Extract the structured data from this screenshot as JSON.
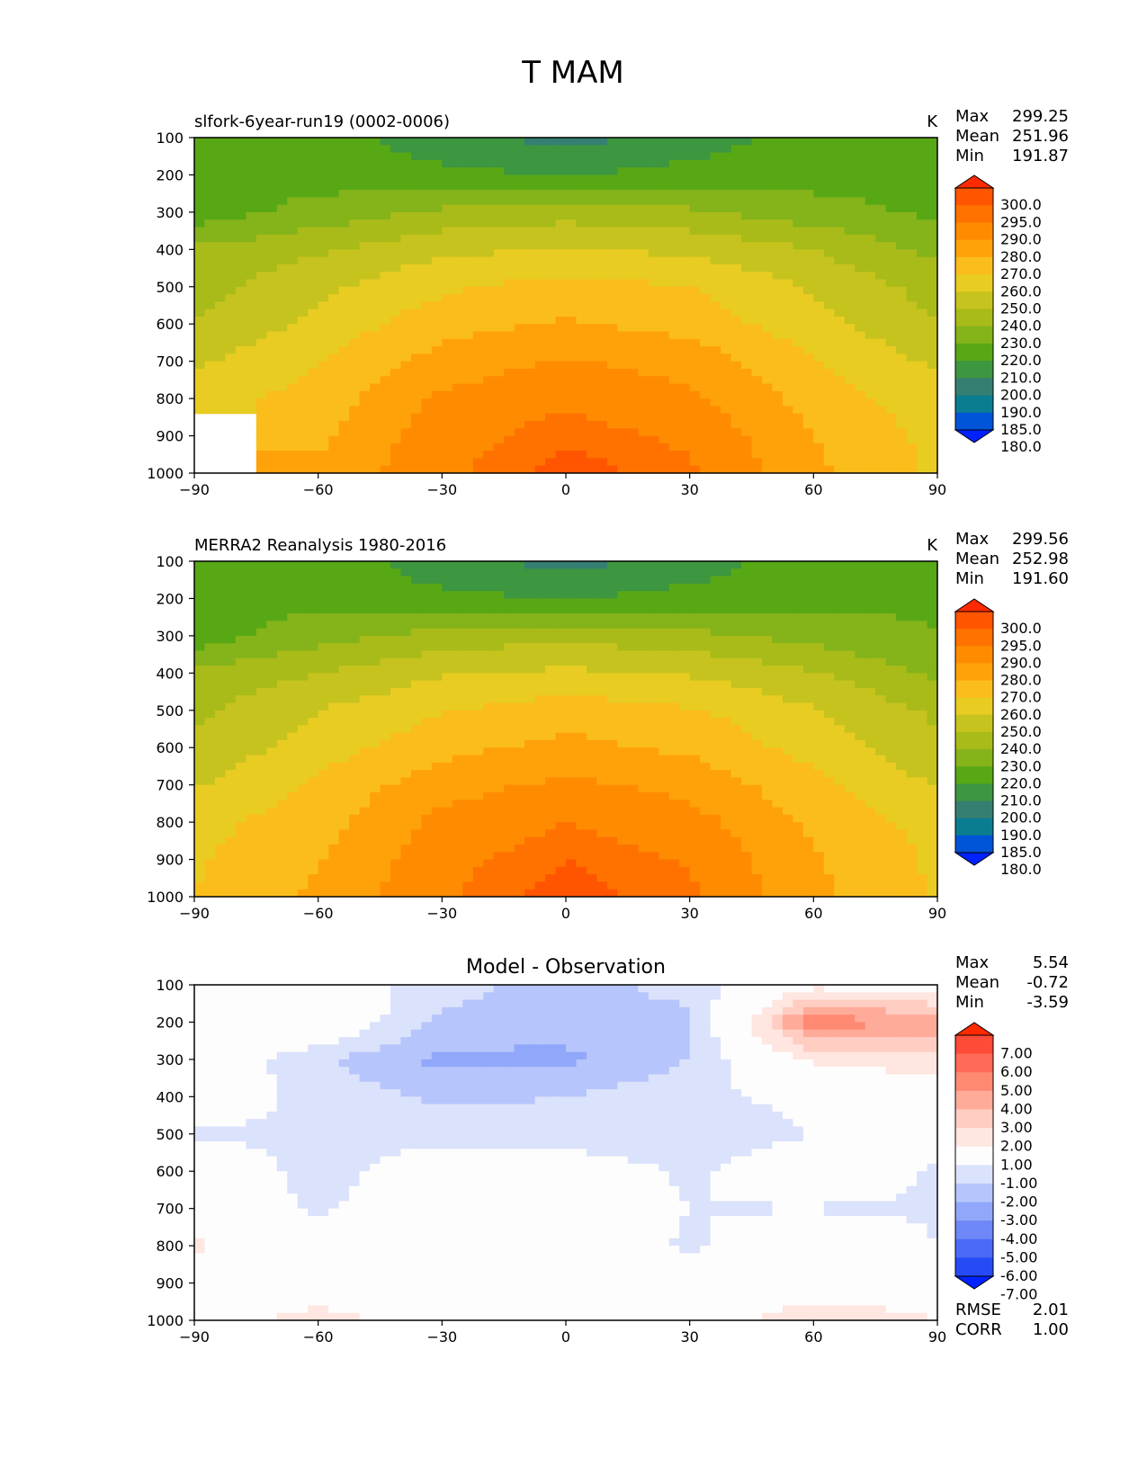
{
  "figure": {
    "title": "T MAM"
  },
  "chart_data": [
    {
      "type": "contour",
      "panel": "test",
      "title_left": "slfork-6year-run19 (0002-0006)",
      "title_center": "",
      "units": "K",
      "xlabel": "",
      "ylabel": "",
      "xlim": [
        -90,
        90
      ],
      "ylim": [
        1000,
        100
      ],
      "y_inverted": true,
      "x_ticks": [
        "−90",
        "−60",
        "−30",
        "0",
        "30",
        "60",
        "90"
      ],
      "y_ticks": [
        "100",
        "200",
        "300",
        "400",
        "500",
        "600",
        "700",
        "800",
        "900",
        "1000"
      ],
      "stats": {
        "max_label": "Max",
        "max": "299.25",
        "mean_label": "Mean",
        "mean": "251.96",
        "min_label": "Min",
        "min": "191.87"
      },
      "colorbar": {
        "levels": [
          "300.0",
          "295.0",
          "290.0",
          "280.0",
          "270.0",
          "260.0",
          "250.0",
          "240.0",
          "230.0",
          "220.0",
          "210.0",
          "200.0",
          "190.0",
          "185.0",
          "180.0"
        ],
        "colors": [
          "#ff2a00",
          "#ff5500",
          "#ff7200",
          "#ff8c00",
          "#ffa20a",
          "#fbbd1b",
          "#e8cc22",
          "#c6c31e",
          "#a8bb18",
          "#84b31a",
          "#58a815",
          "#3d9640",
          "#357f72",
          "#0b7d91",
          "#0054d8",
          "#0022ff"
        ]
      },
      "field": {
        "x": [
          -90,
          -60,
          -30,
          0,
          30,
          60,
          90
        ],
        "y": [
          100,
          200,
          300,
          400,
          500,
          600,
          700,
          800,
          900,
          1000
        ],
        "z": [
          [
            217,
            214,
            205,
            196,
            205,
            214,
            216
          ],
          [
            219,
            215,
            212,
            210,
            213,
            216,
            218
          ],
          [
            214,
            224,
            232,
            236,
            232,
            224,
            218
          ],
          [
            232,
            238,
            248,
            250,
            248,
            240,
            227
          ],
          [
            236,
            248,
            258,
            264,
            260,
            249,
            236
          ],
          [
            240,
            253,
            266,
            271,
            266,
            254,
            240
          ],
          [
            248,
            260,
            274,
            281,
            276,
            261,
            248
          ],
          [
            255,
            264,
            282,
            288,
            282,
            266,
            254
          ],
          [
            null,
            268,
            286,
            294,
            288,
            270,
            257
          ],
          [
            null,
            272,
            288,
            298,
            292,
            272,
            258
          ]
        ]
      }
    },
    {
      "type": "contour",
      "panel": "reference",
      "title_left": "MERRA2 Reanalysis 1980-2016",
      "title_center": "",
      "units": "K",
      "xlabel": "",
      "ylabel": "",
      "xlim": [
        -90,
        90
      ],
      "ylim": [
        1000,
        100
      ],
      "y_inverted": true,
      "x_ticks": [
        "−90",
        "−60",
        "−30",
        "0",
        "30",
        "60",
        "90"
      ],
      "y_ticks": [
        "100",
        "200",
        "300",
        "400",
        "500",
        "600",
        "700",
        "800",
        "900",
        "1000"
      ],
      "stats": {
        "max_label": "Max",
        "max": "299.56",
        "mean_label": "Mean",
        "mean": "252.98",
        "min_label": "Min",
        "min": "191.60"
      },
      "colorbar": {
        "levels": [
          "300.0",
          "295.0",
          "290.0",
          "280.0",
          "270.0",
          "260.0",
          "250.0",
          "240.0",
          "230.0",
          "220.0",
          "210.0",
          "200.0",
          "190.0",
          "185.0",
          "180.0"
        ],
        "colors": [
          "#ff2a00",
          "#ff5500",
          "#ff7200",
          "#ff8c00",
          "#ffa20a",
          "#fbbd1b",
          "#e8cc22",
          "#c6c31e",
          "#a8bb18",
          "#84b31a",
          "#58a815",
          "#3d9640",
          "#357f72",
          "#0b7d91",
          "#0054d8",
          "#0022ff"
        ]
      },
      "field": {
        "x": [
          -90,
          -60,
          -30,
          0,
          30,
          60,
          90
        ],
        "y": [
          100,
          200,
          300,
          400,
          500,
          600,
          700,
          800,
          900,
          1000
        ],
        "z": [
          [
            217,
            215,
            205,
            196,
            205,
            215,
            218
          ],
          [
            219,
            216,
            212,
            210,
            213,
            216,
            219
          ],
          [
            214,
            226,
            234,
            237,
            233,
            226,
            220
          ],
          [
            232,
            240,
            249,
            252,
            249,
            241,
            228
          ],
          [
            238,
            250,
            259,
            265,
            261,
            251,
            238
          ],
          [
            242,
            255,
            267,
            273,
            268,
            256,
            242
          ],
          [
            249,
            262,
            276,
            282,
            277,
            263,
            249
          ],
          [
            256,
            266,
            283,
            290,
            284,
            268,
            256
          ],
          [
            259,
            269,
            287,
            295,
            289,
            271,
            258
          ],
          [
            260,
            272,
            289,
            298,
            292,
            273,
            259
          ]
        ]
      }
    },
    {
      "type": "contour",
      "panel": "difference",
      "title_left": "",
      "title_center": "Model - Observation",
      "units": "",
      "xlabel": "",
      "ylabel": "",
      "xlim": [
        -90,
        90
      ],
      "ylim": [
        1000,
        100
      ],
      "y_inverted": true,
      "x_ticks": [
        "−90",
        "−60",
        "−30",
        "0",
        "30",
        "60",
        "90"
      ],
      "y_ticks": [
        "100",
        "200",
        "300",
        "400",
        "500",
        "600",
        "700",
        "800",
        "900",
        "1000"
      ],
      "stats": {
        "max_label": "Max",
        "max": "5.54",
        "mean_label": "Mean",
        "mean": "-0.72",
        "min_label": "Min",
        "min": "-3.59"
      },
      "metrics": {
        "rmse_label": "RMSE",
        "rmse": "2.01",
        "corr_label": "CORR",
        "corr": "1.00"
      },
      "colorbar": {
        "levels": [
          "7.00",
          "6.00",
          "5.00",
          "4.00",
          "3.00",
          "2.00",
          "1.00",
          "-1.00",
          "-2.00",
          "-3.00",
          "-4.00",
          "-5.00",
          "-6.00",
          "-7.00"
        ],
        "colors": [
          "#ff2a00",
          "#fd4b38",
          "#fe6b56",
          "#fe8a74",
          "#ffab9a",
          "#ffcdc1",
          "#ffe6e0",
          "#fdfdfd",
          "#dbe2fb",
          "#b6c5fb",
          "#91a7fa",
          "#6e88f8",
          "#4a6af8",
          "#264bf6",
          "#0022ff"
        ]
      },
      "field": {
        "x": [
          -90,
          -60,
          -30,
          0,
          30,
          60,
          90
        ],
        "y": [
          100,
          200,
          300,
          400,
          500,
          600,
          700,
          800,
          900,
          1000
        ],
        "z": [
          [
            0.0,
            0.0,
            -1.6,
            -2.4,
            -1.6,
            0.6,
            0.4
          ],
          [
            0.9,
            0.3,
            -2.2,
            -2.6,
            -2.3,
            4.8,
            3.5
          ],
          [
            0.0,
            -1.8,
            -3.3,
            -3.2,
            -2.0,
            1.2,
            1.8
          ],
          [
            0.0,
            -1.4,
            -2.2,
            -2.0,
            -1.3,
            -0.6,
            0.0
          ],
          [
            -1.1,
            -1.3,
            -1.4,
            -1.6,
            -1.9,
            -1.0,
            0.0
          ],
          [
            0.0,
            -1.4,
            -0.3,
            -0.2,
            -1.2,
            0.0,
            -1.2
          ],
          [
            0.0,
            -1.2,
            0.0,
            0.0,
            -1.0,
            -1.1,
            -1.1
          ],
          [
            1.2,
            0.0,
            0.0,
            0.0,
            -1.2,
            0.0,
            -1.0
          ],
          [
            0.0,
            0.0,
            0.0,
            0.0,
            -0.4,
            0.0,
            0.0
          ],
          [
            0.0,
            1.6,
            0.0,
            0.0,
            0.0,
            2.0,
            1.0
          ]
        ]
      }
    }
  ]
}
